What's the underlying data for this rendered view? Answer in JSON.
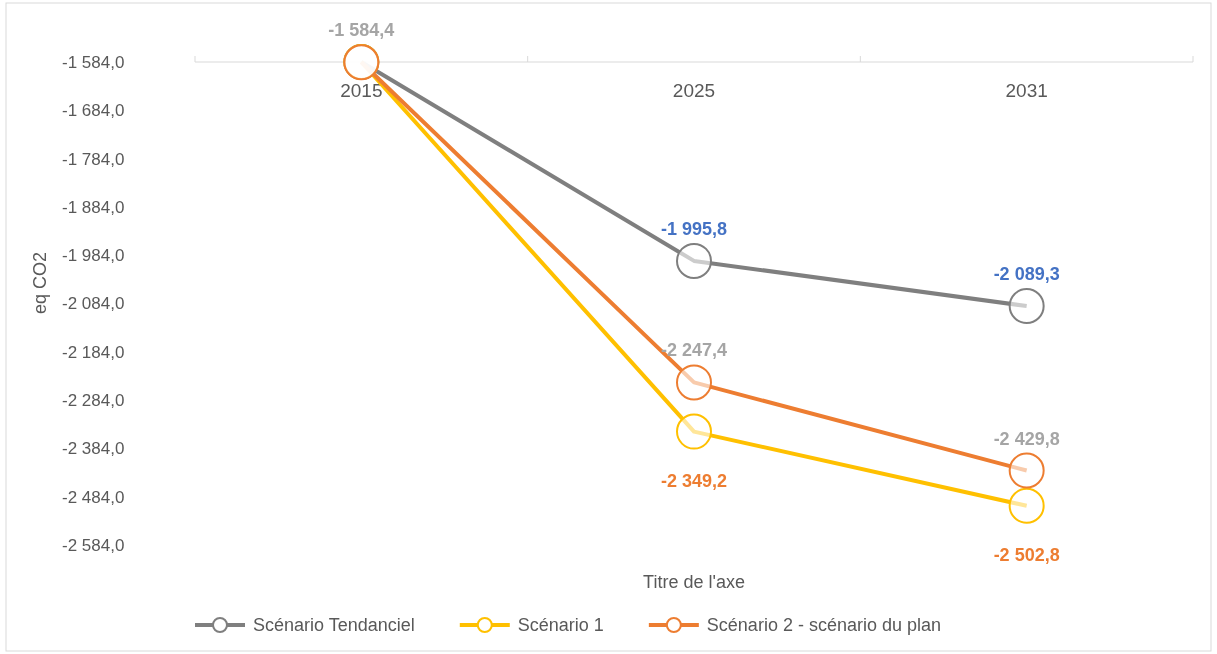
{
  "chart_data": {
    "type": "line",
    "xlabel": "Titre de l'axe",
    "ylabel": "eq CO2",
    "categories": [
      "2015",
      "2025",
      "2031"
    ],
    "series": [
      {
        "name": "Scénario Tendanciel",
        "color": "#7f7f7f",
        "values": [
          -1584,
          -1995.8,
          -2089.3
        ],
        "value_labels": [
          null,
          "-1 995,8",
          "-2 089,3"
        ]
      },
      {
        "name": "Scénario 1",
        "color": "#ffc000",
        "values": [
          -1584,
          -2349.2,
          -2502.8
        ],
        "value_labels": [
          null,
          "-2 349,2",
          "-2 502,8"
        ]
      },
      {
        "name": "Scénario 2 - scénario du plan",
        "color": "#ed7d31",
        "values": [
          -1584.4,
          -2247.4,
          -2429.8
        ],
        "value_labels": [
          "-1 584,4",
          "-2 247,4",
          "-2 429,8"
        ]
      }
    ],
    "ylim": [
      -2584,
      -1584
    ],
    "yticks": [
      {
        "value": -1584,
        "label": "-1 584,0"
      },
      {
        "value": -1684,
        "label": "-1 684,0"
      },
      {
        "value": -1784,
        "label": "-1 784,0"
      },
      {
        "value": -1884,
        "label": "-1 884,0"
      },
      {
        "value": -1984,
        "label": "-1 984,0"
      },
      {
        "value": -2084,
        "label": "-2 084,0"
      },
      {
        "value": -2184,
        "label": "-2 184,0"
      },
      {
        "value": -2284,
        "label": "-2 284,0"
      },
      {
        "value": -2384,
        "label": "-2 384,0"
      },
      {
        "value": -2484,
        "label": "-2 484,0"
      },
      {
        "value": -2584,
        "label": "-2 584,0"
      }
    ],
    "grid": false,
    "legend": "bottom",
    "marker": "circle",
    "line_style": "solid"
  }
}
